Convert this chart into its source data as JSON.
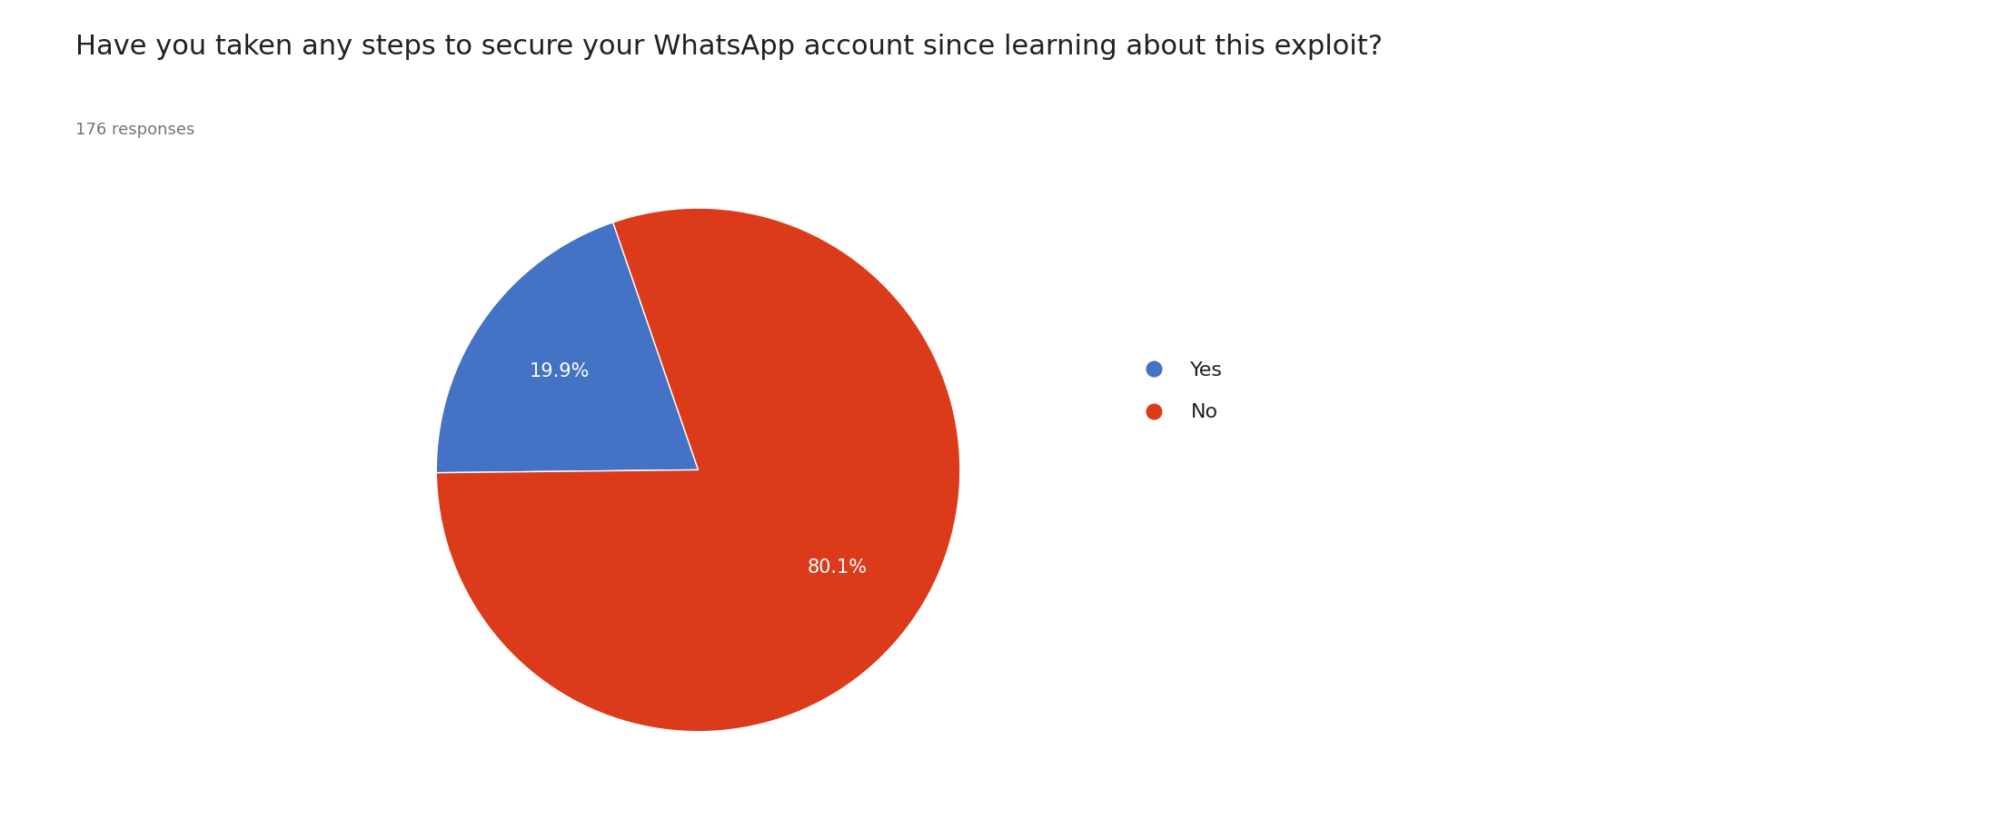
{
  "title": "Have you taken any steps to secure your WhatsApp account since learning about this exploit?",
  "subtitle": "176 responses",
  "labels": [
    "Yes",
    "No"
  ],
  "values": [
    19.9,
    80.1
  ],
  "colors": [
    "#4472c4",
    "#db3b1a"
  ],
  "text_colors": [
    "white",
    "white"
  ],
  "autopct_labels": [
    "19.9%",
    "80.1%"
  ],
  "startangle": -251,
  "title_fontsize": 22,
  "subtitle_fontsize": 13,
  "pct_fontsize": 15,
  "legend_fontsize": 16,
  "background_color": "#ffffff",
  "title_color": "#212121",
  "subtitle_color": "#757575",
  "legend_color": "#212121"
}
